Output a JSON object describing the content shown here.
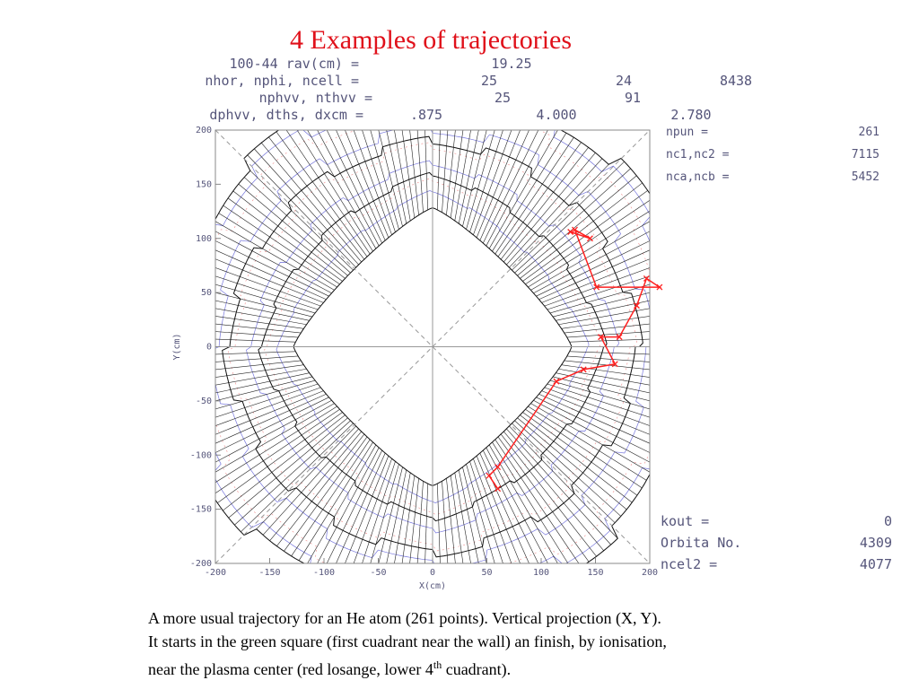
{
  "slide_title": "4 Examples of trajectories",
  "header": [
    {
      "label": "100-44 rav(cm) =",
      "values": [
        "19.25"
      ]
    },
    {
      "label": "nhor, nphi, ncell =",
      "values": [
        "25",
        "24",
        "8438"
      ]
    },
    {
      "label": "nphvv, nthvv =",
      "values": [
        "25",
        "91"
      ]
    },
    {
      "label": "dphvv, dths, dxcm =",
      "values": [
        ".875",
        "4.000",
        "2.780"
      ]
    }
  ],
  "side_top": [
    {
      "label": "npun =",
      "value": "261"
    },
    {
      "label": "nc1,nc2 =",
      "value": "7115"
    },
    {
      "label": "nca,ncb =",
      "value": "5452"
    }
  ],
  "side_bottom": [
    {
      "label": "kout =",
      "value": "0"
    },
    {
      "label": "Orbita No.",
      "value": "4309"
    },
    {
      "label": "ncel2 =",
      "value": "4077"
    }
  ],
  "chart_data": {
    "type": "line",
    "xlabel": "X(cm)",
    "ylabel": "Y(cm)",
    "xlim": [
      -200,
      200
    ],
    "ylim": [
      -200,
      200
    ],
    "xticks": [
      -200,
      -150,
      -100,
      -50,
      0,
      50,
      100,
      150,
      200
    ],
    "yticks": [
      -200,
      -150,
      -100,
      -50,
      0,
      50,
      100,
      150,
      200
    ],
    "series": [
      {
        "color": "#ff2020",
        "x": [
          127,
          145,
          131,
          151,
          209,
          197,
          188,
          172,
          155,
          168,
          139,
          114,
          60,
          52,
          60
        ],
        "y": [
          106,
          100,
          108,
          55,
          55,
          63,
          38,
          9,
          9,
          -16,
          -21,
          -32,
          -111,
          -119,
          -131
        ]
      }
    ]
  },
  "caption": [
    "A more usual trajectory for an He atom (261 points). Vertical projection (X, Y).",
    "It starts in the green square (first cuadrant near the wall) an finish, by ionisation,",
    [
      "near the plasma center (red losange, lower 4",
      "th",
      " cuadrant)."
    ]
  ]
}
